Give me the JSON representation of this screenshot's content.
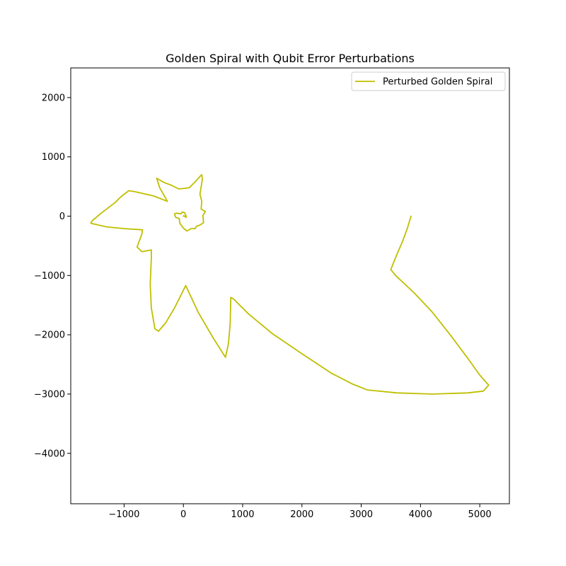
{
  "chart_data": {
    "type": "line",
    "title": "Golden Spiral with Qubit Error Perturbations",
    "xlabel": "",
    "ylabel": "",
    "xlim": [
      -1900,
      5500
    ],
    "ylim": [
      -4850,
      2500
    ],
    "xticks": [
      -1000,
      0,
      1000,
      2000,
      3000,
      4000,
      5000
    ],
    "yticks": [
      2000,
      1000,
      0,
      -1000,
      -2000,
      -3000,
      -4000
    ],
    "grid": false,
    "legend_position": "top-right",
    "series": [
      {
        "name": "Perturbed Golden Spiral",
        "color": "#bfbf00",
        "points": [
          [
            3840,
            0
          ],
          [
            3780,
            -200
          ],
          [
            3700,
            -420
          ],
          [
            3600,
            -650
          ],
          [
            3500,
            -900
          ],
          [
            3580,
            -1000
          ],
          [
            3900,
            -1300
          ],
          [
            4200,
            -1620
          ],
          [
            4500,
            -2000
          ],
          [
            4800,
            -2400
          ],
          [
            5000,
            -2680
          ],
          [
            5150,
            -2850
          ],
          [
            5060,
            -2950
          ],
          [
            4800,
            -2980
          ],
          [
            4200,
            -3000
          ],
          [
            3600,
            -2980
          ],
          [
            3100,
            -2930
          ],
          [
            2850,
            -2830
          ],
          [
            2500,
            -2650
          ],
          [
            2000,
            -2320
          ],
          [
            1500,
            -1980
          ],
          [
            1100,
            -1650
          ],
          [
            850,
            -1400
          ],
          [
            800,
            -1370
          ],
          [
            790,
            -1800
          ],
          [
            760,
            -2150
          ],
          [
            710,
            -2380
          ],
          [
            500,
            -2050
          ],
          [
            250,
            -1620
          ],
          [
            40,
            -1170
          ],
          [
            -150,
            -1550
          ],
          [
            -300,
            -1800
          ],
          [
            -420,
            -1940
          ],
          [
            -480,
            -1900
          ],
          [
            -540,
            -1550
          ],
          [
            -560,
            -1150
          ],
          [
            -540,
            -700
          ],
          [
            -540,
            -570
          ],
          [
            -700,
            -600
          ],
          [
            -780,
            -520
          ],
          [
            -700,
            -300
          ],
          [
            -690,
            -230
          ],
          [
            -1000,
            -210
          ],
          [
            -1300,
            -180
          ],
          [
            -1560,
            -120
          ],
          [
            -1540,
            -80
          ],
          [
            -1400,
            40
          ],
          [
            -1150,
            230
          ],
          [
            -1050,
            330
          ],
          [
            -920,
            430
          ],
          [
            -800,
            410
          ],
          [
            -500,
            340
          ],
          [
            -270,
            250
          ],
          [
            -400,
            480
          ],
          [
            -450,
            640
          ],
          [
            -330,
            570
          ],
          [
            -200,
            520
          ],
          [
            -80,
            460
          ],
          [
            30,
            470
          ],
          [
            100,
            480
          ],
          [
            200,
            580
          ],
          [
            290,
            680
          ],
          [
            310,
            700
          ],
          [
            320,
            620
          ],
          [
            280,
            370
          ],
          [
            310,
            250
          ],
          [
            300,
            120
          ],
          [
            370,
            80
          ],
          [
            330,
            10
          ],
          [
            340,
            -110
          ],
          [
            280,
            -150
          ],
          [
            220,
            -170
          ],
          [
            200,
            -210
          ],
          [
            130,
            -210
          ],
          [
            60,
            -250
          ],
          [
            0,
            -200
          ],
          [
            -60,
            -120
          ],
          [
            -70,
            -40
          ],
          [
            -130,
            -20
          ],
          [
            -150,
            40
          ],
          [
            -120,
            50
          ],
          [
            -40,
            40
          ],
          [
            -20,
            70
          ],
          [
            20,
            60
          ],
          [
            40,
            20
          ],
          [
            50,
            -20
          ],
          [
            30,
            -10
          ],
          [
            10,
            10
          ],
          [
            0,
            0
          ]
        ]
      }
    ]
  }
}
